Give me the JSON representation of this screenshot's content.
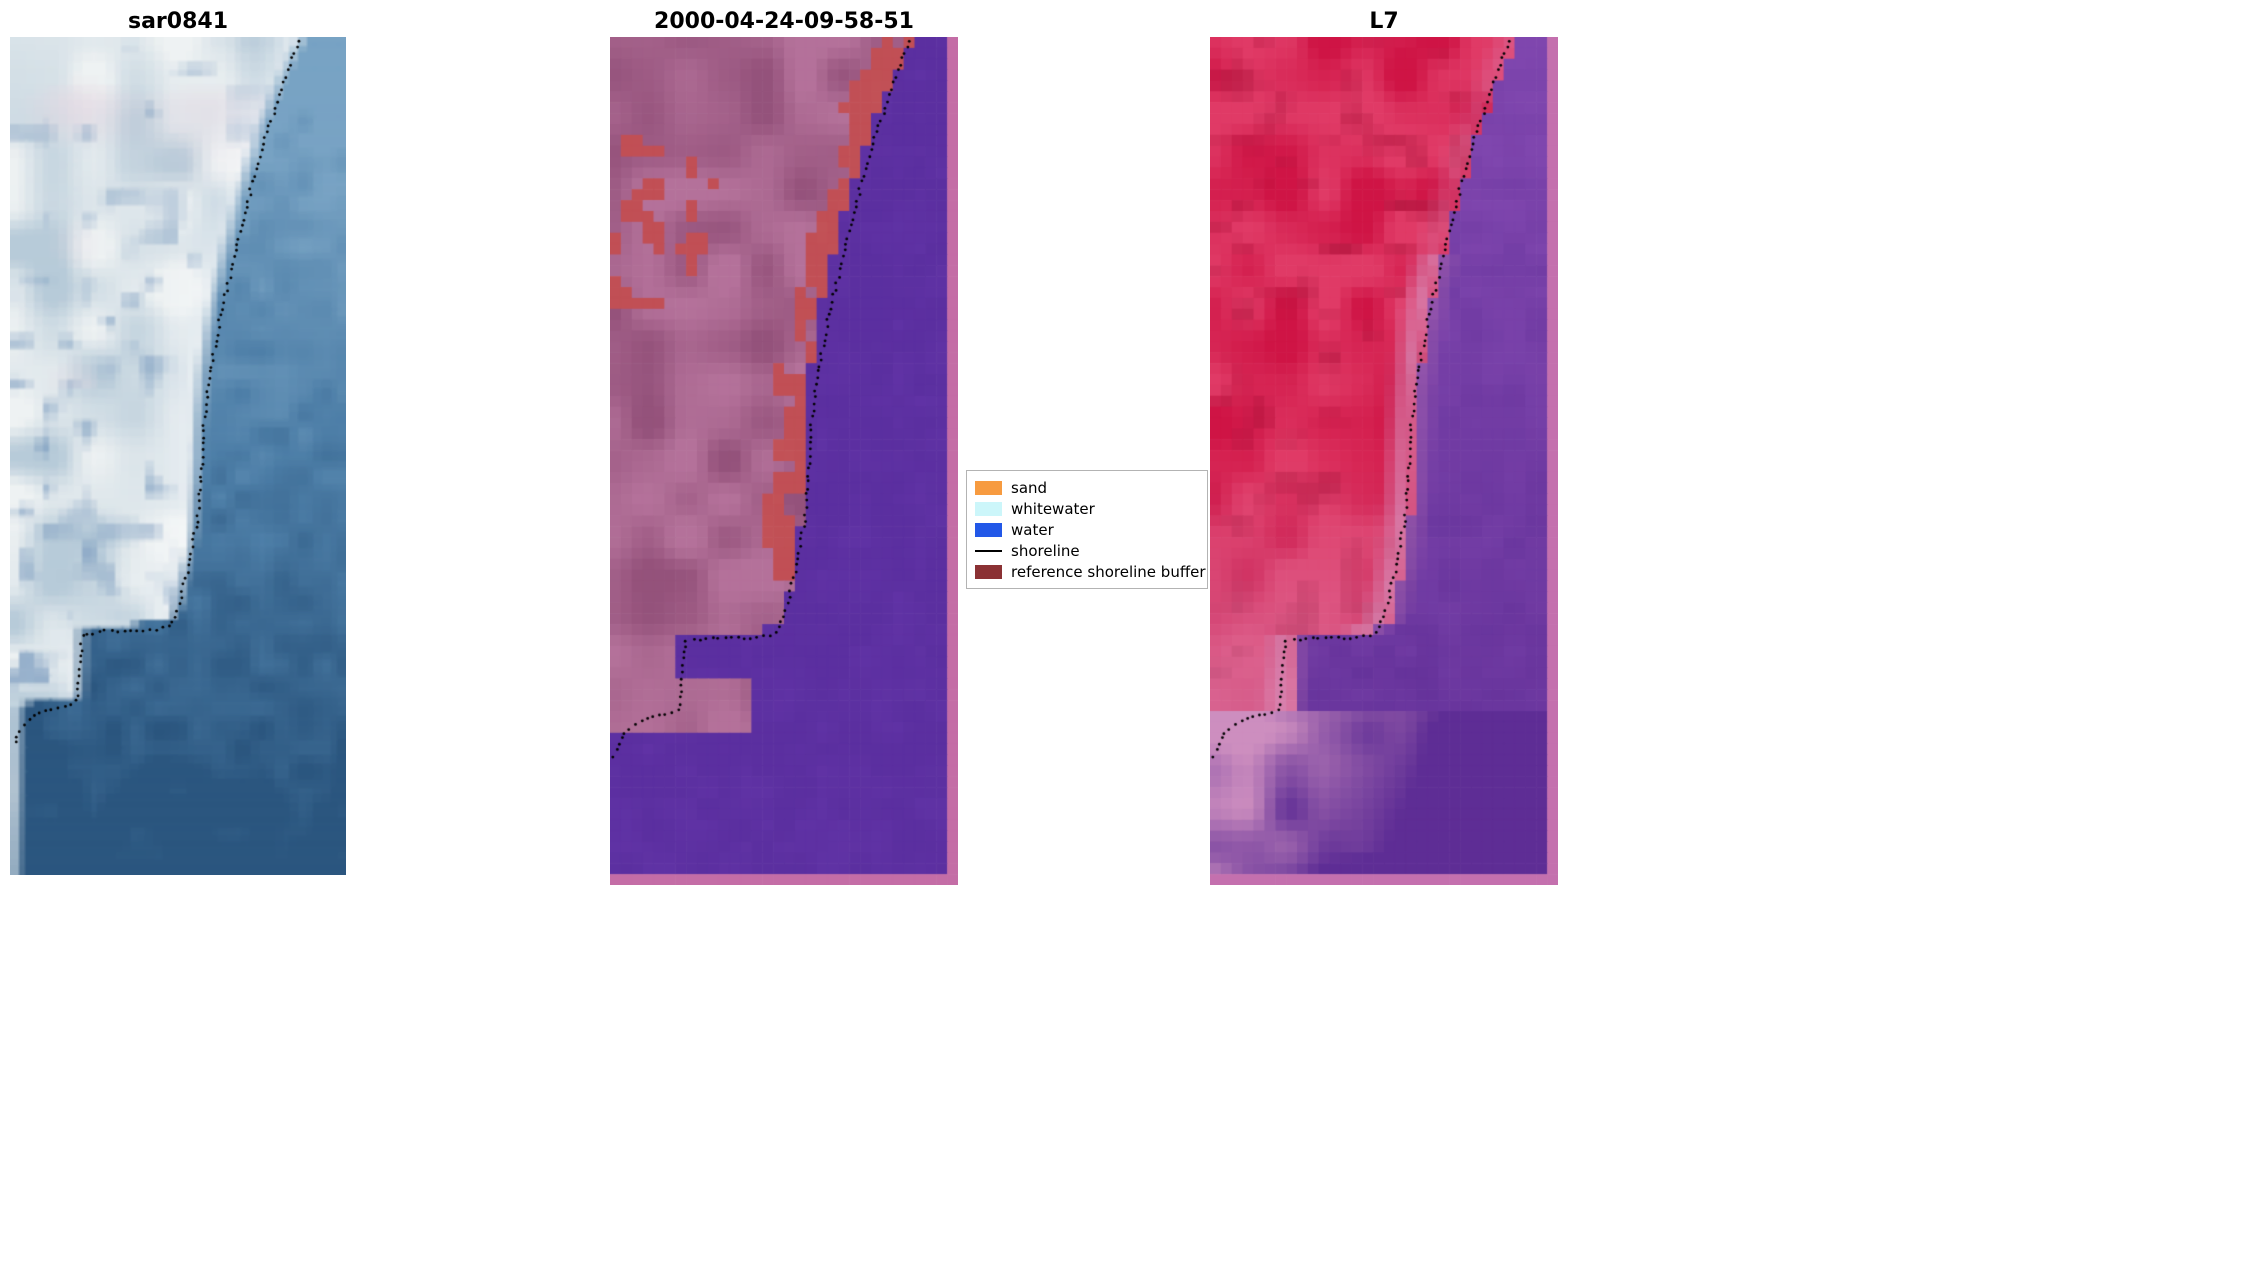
{
  "figure": {
    "background": "#ffffff"
  },
  "panels": [
    {
      "id": "sar0841",
      "title": "sar0841",
      "palette": {
        "land_light": "#eef2f3",
        "land_mid": "#b7cbd9",
        "land_pink": "#e7d9e3",
        "land_blue": "#7698bd",
        "water_top": "#78a3c4",
        "water_mid": "#4e7fa8",
        "water_deep": "#2b567f"
      }
    },
    {
      "id": "classified",
      "title": "2000-04-24-09-58-51",
      "palette": {
        "water": "#5b2fa0",
        "land": "#a8618c",
        "land_dark": "#8a4a72",
        "land_light": "#bb7ba2",
        "buffer": "#c14f55",
        "edge": "#c46da6"
      }
    },
    {
      "id": "l7",
      "title": "L7",
      "palette": {
        "land": "#cf1445",
        "land_bright": "#e03a66",
        "land_dark": "#a60f36",
        "water": "#7f46ae",
        "water_deep": "#5a2a92",
        "shore_pink": "#d887b4",
        "bottom_pink": "#d898c2",
        "edge": "#c470ae"
      }
    }
  ],
  "legend": {
    "items": [
      {
        "label": "sand",
        "color": "#f79b40",
        "kind": "patch"
      },
      {
        "label": "whitewater",
        "color": "#ccf6fa",
        "kind": "patch"
      },
      {
        "label": "water",
        "color": "#2258e8",
        "kind": "patch"
      },
      {
        "label": "shoreline",
        "color": "#000000",
        "kind": "line"
      },
      {
        "label": "reference shoreline buffer",
        "color": "#8b3134",
        "kind": "patch"
      }
    ]
  },
  "shoreline": {
    "dot_color": "#000000",
    "points": [
      [
        0.862,
        0.004
      ],
      [
        0.846,
        0.022
      ],
      [
        0.83,
        0.04
      ],
      [
        0.812,
        0.058
      ],
      [
        0.796,
        0.077
      ],
      [
        0.78,
        0.096
      ],
      [
        0.762,
        0.116
      ],
      [
        0.746,
        0.138
      ],
      [
        0.73,
        0.162
      ],
      [
        0.714,
        0.186
      ],
      [
        0.698,
        0.212
      ],
      [
        0.682,
        0.238
      ],
      [
        0.666,
        0.264
      ],
      [
        0.651,
        0.29
      ],
      [
        0.637,
        0.316
      ],
      [
        0.623,
        0.342
      ],
      [
        0.611,
        0.368
      ],
      [
        0.6,
        0.394
      ],
      [
        0.59,
        0.42
      ],
      [
        0.582,
        0.446
      ],
      [
        0.576,
        0.47
      ],
      [
        0.572,
        0.494
      ],
      [
        0.569,
        0.518
      ],
      [
        0.565,
        0.542
      ],
      [
        0.559,
        0.566
      ],
      [
        0.551,
        0.59
      ],
      [
        0.541,
        0.614
      ],
      [
        0.529,
        0.638
      ],
      [
        0.515,
        0.66
      ],
      [
        0.5,
        0.68
      ],
      [
        0.487,
        0.696
      ],
      [
        0.477,
        0.704
      ],
      [
        0.44,
        0.707
      ],
      [
        0.4,
        0.709
      ],
      [
        0.36,
        0.707
      ],
      [
        0.32,
        0.71
      ],
      [
        0.28,
        0.708
      ],
      [
        0.243,
        0.712
      ],
      [
        0.216,
        0.712
      ],
      [
        0.212,
        0.733
      ],
      [
        0.209,
        0.754
      ],
      [
        0.205,
        0.774
      ],
      [
        0.201,
        0.792
      ],
      [
        0.178,
        0.797
      ],
      [
        0.15,
        0.8
      ],
      [
        0.122,
        0.803
      ],
      [
        0.094,
        0.807
      ],
      [
        0.068,
        0.812
      ],
      [
        0.047,
        0.819
      ],
      [
        0.031,
        0.828
      ],
      [
        0.019,
        0.838
      ],
      [
        0.011,
        0.848
      ]
    ]
  },
  "boundaries": {
    "reference": [
      [
        0.0,
        0.868
      ],
      [
        0.05,
        0.806
      ],
      [
        0.1,
        0.752
      ],
      [
        0.15,
        0.712
      ],
      [
        0.2,
        0.676
      ],
      [
        0.25,
        0.644
      ],
      [
        0.3,
        0.614
      ],
      [
        0.35,
        0.59
      ],
      [
        0.4,
        0.572
      ],
      [
        0.45,
        0.563
      ],
      [
        0.5,
        0.558
      ],
      [
        0.55,
        0.552
      ],
      [
        0.6,
        0.54
      ],
      [
        0.64,
        0.521
      ],
      [
        0.67,
        0.503
      ],
      [
        0.698,
        0.48
      ],
      [
        0.703,
        0.213
      ],
      [
        0.79,
        0.205
      ],
      [
        0.796,
        0.03
      ],
      [
        1.0,
        0.02
      ]
    ],
    "classified": [
      [
        0.0,
        0.868
      ],
      [
        0.05,
        0.806
      ],
      [
        0.1,
        0.752
      ],
      [
        0.15,
        0.712
      ],
      [
        0.2,
        0.676
      ],
      [
        0.25,
        0.644
      ],
      [
        0.3,
        0.614
      ],
      [
        0.35,
        0.59
      ],
      [
        0.4,
        0.572
      ],
      [
        0.45,
        0.563
      ],
      [
        0.5,
        0.558
      ],
      [
        0.55,
        0.552
      ],
      [
        0.6,
        0.54
      ],
      [
        0.64,
        0.521
      ],
      [
        0.67,
        0.503
      ],
      [
        0.698,
        0.48
      ],
      [
        0.703,
        0.2
      ],
      [
        0.752,
        0.2
      ],
      [
        0.757,
        0.42
      ],
      [
        0.82,
        0.4
      ],
      [
        0.826,
        0.0
      ],
      [
        1.0,
        0.0
      ]
    ]
  },
  "chart_data": {
    "type": "heatmap",
    "title": "",
    "panels": [
      {
        "title": "sar0841",
        "description": "SAR satellite image with mapped shoreline shown as black dotted line"
      },
      {
        "title": "2000-04-24-09-58-51",
        "description": "classified image: water (purple), land (mauve), red patches along coast, shoreline as black dotted line"
      },
      {
        "title": "L7",
        "description": "Landsat 7 false-colour image with mapped shoreline shown as black dotted line"
      }
    ],
    "legend_entries": [
      "sand",
      "whitewater",
      "water",
      "shoreline",
      "reference shoreline buffer"
    ]
  }
}
